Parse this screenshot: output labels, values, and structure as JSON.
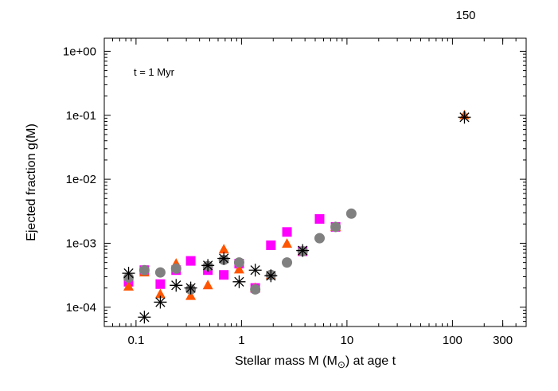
{
  "chart_data": {
    "type": "scatter",
    "title": "",
    "xlabel_prefix": "Stellar mass M (M",
    "xlabel_subscript": "⊙",
    "xlabel_suffix": ") at age t",
    "ylabel": "Ejected fraction g(M)",
    "xscale": "log",
    "yscale": "log",
    "xlim": [
      0.05,
      500
    ],
    "ylim": [
      5e-05,
      1.6
    ],
    "x_ticks": [
      {
        "value": 0.1,
        "label": "0.1"
      },
      {
        "value": 1,
        "label": "1"
      },
      {
        "value": 10,
        "label": "10"
      },
      {
        "value": 100,
        "label": "100"
      },
      {
        "value": 300,
        "label": "300"
      }
    ],
    "y_ticks": [
      {
        "value": 0.0001,
        "label": "1e-04"
      },
      {
        "value": 0.001,
        "label": "1e-03"
      },
      {
        "value": 0.01,
        "label": "1e-02"
      },
      {
        "value": 0.1,
        "label": "1e-01"
      },
      {
        "value": 1,
        "label": "1e+00"
      }
    ],
    "top_label": "150",
    "annotation": "t = 1 Myr",
    "grid": false,
    "legend": "none",
    "series": [
      {
        "marker": "square",
        "color": "#ff00ff",
        "points": [
          [
            0.085,
            0.00025
          ],
          [
            0.12,
            0.00038
          ],
          [
            0.17,
            0.00023
          ],
          [
            0.24,
            0.00038
          ],
          [
            0.33,
            0.00053
          ],
          [
            0.48,
            0.00038
          ],
          [
            0.68,
            0.00032
          ],
          [
            0.95,
            0.00048
          ],
          [
            1.35,
            0.0002
          ],
          [
            1.9,
            0.00093
          ],
          [
            2.7,
            0.0015
          ],
          [
            3.8,
            0.00075
          ],
          [
            5.5,
            0.0024
          ],
          [
            7.8,
            0.0018
          ]
        ]
      },
      {
        "marker": "triangle",
        "color": "#ff5500",
        "points": [
          [
            0.085,
            0.00021
          ],
          [
            0.12,
            0.00035
          ],
          [
            0.17,
            0.00016
          ],
          [
            0.24,
            0.00048
          ],
          [
            0.33,
            0.00015
          ],
          [
            0.48,
            0.00022
          ],
          [
            0.68,
            0.0008
          ],
          [
            0.95,
            0.00039
          ],
          [
            1.35,
            0.0002
          ],
          [
            1.9,
            0.00032
          ],
          [
            2.7,
            0.00098
          ],
          [
            3.8,
            0.00075
          ],
          [
            7.8,
            0.0018
          ],
          [
            130,
            0.1
          ]
        ]
      },
      {
        "marker": "circle",
        "color": "#808080",
        "points": [
          [
            0.085,
            0.00029
          ],
          [
            0.12,
            0.00038
          ],
          [
            0.17,
            0.00035
          ],
          [
            0.24,
            0.0004
          ],
          [
            0.33,
            0.00019
          ],
          [
            0.48,
            0.00044
          ],
          [
            0.68,
            0.00055
          ],
          [
            0.95,
            0.0005
          ],
          [
            1.35,
            0.00019
          ],
          [
            1.9,
            0.00032
          ],
          [
            2.7,
            0.0005
          ],
          [
            3.8,
            0.00075
          ],
          [
            5.5,
            0.0012
          ],
          [
            7.8,
            0.0018
          ],
          [
            11,
            0.0029
          ]
        ]
      },
      {
        "marker": "asterisk",
        "color": "#000000",
        "points": [
          [
            0.085,
            0.00034
          ],
          [
            0.12,
            7e-05
          ],
          [
            0.17,
            0.00012
          ],
          [
            0.24,
            0.00022
          ],
          [
            0.33,
            0.0002
          ],
          [
            0.48,
            0.00045
          ],
          [
            0.68,
            0.00058
          ],
          [
            0.95,
            0.00025
          ],
          [
            1.35,
            0.00038
          ],
          [
            1.9,
            0.00031
          ],
          [
            3.8,
            0.00077
          ],
          [
            130,
            0.093
          ]
        ]
      }
    ]
  }
}
